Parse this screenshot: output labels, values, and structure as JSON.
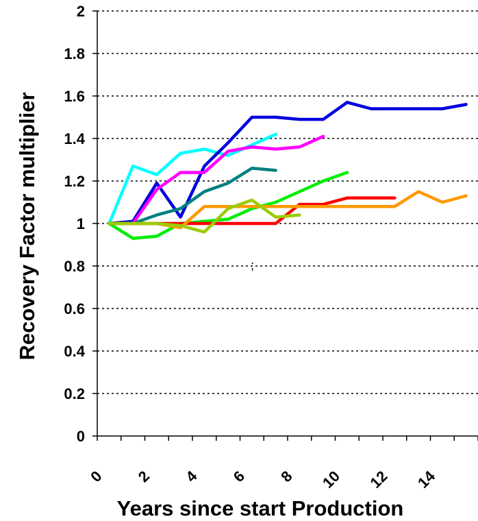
{
  "chart_data": {
    "type": "line",
    "xlabel": "Years since start Production",
    "ylabel": "Recovery Factor multiplier",
    "xlim": [
      0,
      16
    ],
    "ylim": [
      0,
      2
    ],
    "xticks": [
      0,
      2,
      4,
      6,
      8,
      10,
      12,
      14
    ],
    "xtick_labels": [
      "0",
      "2",
      "4",
      "6",
      "8",
      "10",
      "12",
      "14"
    ],
    "yticks": [
      0,
      0.2,
      0.4,
      0.6,
      0.8,
      1,
      1.2,
      1.4,
      1.6,
      1.8,
      2
    ],
    "ytick_labels": [
      "0",
      "0.2",
      "0.4",
      "0.6",
      "0.8",
      "1",
      "1.2",
      "1.4",
      "1.6",
      "1.8",
      "2"
    ],
    "grid": "horizontal dotted",
    "annotation": ";",
    "series": [
      {
        "color": "#00ffff",
        "x": [
          0.5,
          1.5,
          2.5,
          3.5,
          4.5,
          5.5,
          6.5,
          7.5
        ],
        "y": [
          1.0,
          1.27,
          1.23,
          1.33,
          1.35,
          1.32,
          1.37,
          1.42
        ]
      },
      {
        "color": "#0000dd",
        "x": [
          0.5,
          1.5,
          2.5,
          3.5,
          4.5,
          5.5,
          6.5,
          7.5,
          8.5,
          9.5,
          10.5,
          11.5,
          12.5,
          13.5,
          14.5,
          15.5
        ],
        "y": [
          1.0,
          1.01,
          1.19,
          1.03,
          1.27,
          1.38,
          1.5,
          1.5,
          1.49,
          1.49,
          1.57,
          1.54,
          1.54,
          1.54,
          1.54,
          1.56
        ]
      },
      {
        "color": "#ff00ff",
        "x": [
          0.5,
          1.5,
          2.5,
          3.5,
          4.5,
          5.5,
          6.5,
          7.5,
          8.5,
          9.5
        ],
        "y": [
          1.0,
          1.0,
          1.16,
          1.24,
          1.24,
          1.34,
          1.36,
          1.35,
          1.36,
          1.41
        ]
      },
      {
        "color": "#008080",
        "x": [
          0.5,
          1.5,
          2.5,
          3.5,
          4.5,
          5.5,
          6.5,
          7.5
        ],
        "y": [
          1.0,
          1.0,
          1.04,
          1.07,
          1.15,
          1.19,
          1.26,
          1.25
        ]
      },
      {
        "color": "#00ee00",
        "x": [
          0.5,
          1.5,
          2.5,
          3.5,
          4.5,
          5.5,
          6.5,
          7.5,
          8.5,
          9.5,
          10.5
        ],
        "y": [
          1.0,
          0.93,
          0.94,
          1.0,
          1.01,
          1.02,
          1.07,
          1.1,
          1.15,
          1.2,
          1.24
        ]
      },
      {
        "color": "#ff0000",
        "x": [
          0.5,
          1.5,
          2.5,
          3.5,
          4.5,
          5.5,
          6.5,
          7.5,
          8.5,
          9.5,
          10.5,
          11.5,
          12.5
        ],
        "y": [
          1.0,
          1.0,
          1.0,
          1.0,
          1.0,
          1.0,
          1.0,
          1.0,
          1.09,
          1.09,
          1.12,
          1.12,
          1.12
        ]
      },
      {
        "color": "#ff9900",
        "x": [
          0.5,
          1.5,
          2.5,
          3.5,
          4.5,
          5.5,
          6.5,
          7.5,
          8.5,
          9.5,
          10.5,
          11.5,
          12.5,
          13.5,
          14.5,
          15.5
        ],
        "y": [
          1.0,
          1.0,
          1.0,
          0.98,
          1.08,
          1.08,
          1.08,
          1.08,
          1.08,
          1.08,
          1.08,
          1.08,
          1.08,
          1.15,
          1.1,
          1.13
        ]
      },
      {
        "color": "#99cc00",
        "x": [
          0.5,
          1.5,
          2.5,
          3.5,
          4.5,
          5.5,
          6.5,
          7.5,
          8.5
        ],
        "y": [
          1.0,
          1.0,
          1.0,
          0.99,
          0.96,
          1.07,
          1.11,
          1.03,
          1.04
        ]
      }
    ]
  }
}
